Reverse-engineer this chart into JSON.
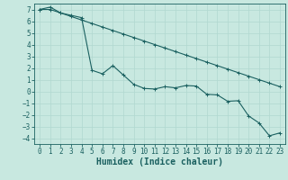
{
  "xlabel": "Humidex (Indice chaleur)",
  "xlim": [
    -0.5,
    23.5
  ],
  "ylim": [
    -4.5,
    7.5
  ],
  "xticks": [
    0,
    1,
    2,
    3,
    4,
    5,
    6,
    7,
    8,
    9,
    10,
    11,
    12,
    13,
    14,
    15,
    16,
    17,
    18,
    19,
    20,
    21,
    22,
    23
  ],
  "yticks": [
    -4,
    -3,
    -2,
    -1,
    0,
    1,
    2,
    3,
    4,
    5,
    6,
    7
  ],
  "bg_color": "#c8e8e0",
  "grid_color": "#b0d8d0",
  "line_color": "#1a6060",
  "line1_x": [
    0,
    1,
    2,
    3,
    4,
    5,
    6,
    7,
    8,
    9,
    10,
    11,
    12,
    13,
    14,
    15,
    16,
    17,
    18,
    19,
    20,
    21,
    22,
    23
  ],
  "line1_y": [
    7.0,
    7.2,
    6.7,
    6.5,
    6.3,
    1.8,
    1.5,
    2.2,
    1.4,
    0.6,
    0.25,
    0.2,
    0.4,
    0.3,
    0.5,
    0.45,
    -0.25,
    -0.3,
    -0.85,
    -0.8,
    -2.1,
    -2.7,
    -3.8,
    -3.55
  ],
  "line2_x": [
    0,
    1,
    2,
    3,
    4,
    5,
    6,
    7,
    8,
    9,
    10,
    11,
    12,
    13,
    14,
    15,
    16,
    17,
    18,
    19,
    20,
    21,
    22,
    23
  ],
  "line2_y": [
    7.0,
    7.0,
    6.7,
    6.4,
    6.1,
    5.8,
    5.5,
    5.2,
    4.9,
    4.6,
    4.3,
    4.0,
    3.7,
    3.4,
    3.1,
    2.8,
    2.5,
    2.2,
    1.9,
    1.6,
    1.3,
    1.0,
    0.7,
    0.4
  ],
  "font_size_label": 7,
  "font_size_tick": 5.5
}
